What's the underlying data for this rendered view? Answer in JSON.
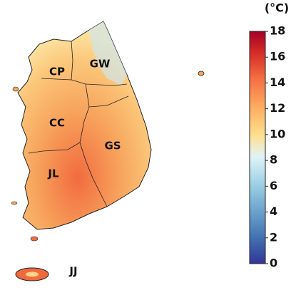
{
  "map": {
    "regions": [
      {
        "label": "CP"
      },
      {
        "label": "GW"
      },
      {
        "label": "CC"
      },
      {
        "label": "GS"
      },
      {
        "label": "JL"
      },
      {
        "label": "JJ"
      }
    ],
    "colorbar": {
      "title": "(°C)",
      "lim": [
        0,
        18
      ],
      "ticks": [
        0,
        2,
        4,
        6,
        8,
        10,
        12,
        14,
        16,
        18
      ]
    }
  }
}
